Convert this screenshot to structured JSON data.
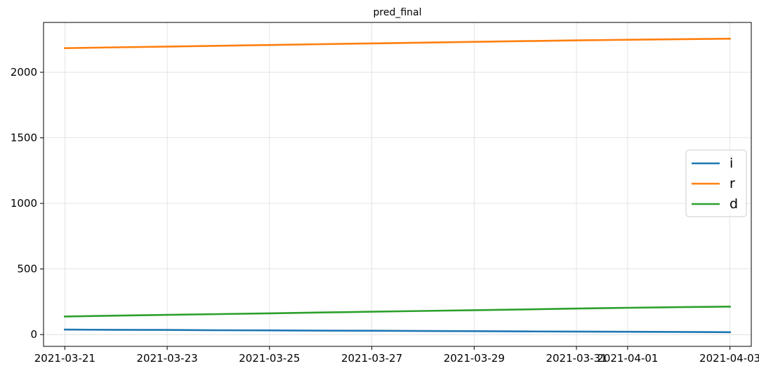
{
  "chart_data": {
    "type": "line",
    "title": "pred_final",
    "xlabel": "",
    "ylabel": "",
    "x": [
      "2021-03-21",
      "2021-03-22",
      "2021-03-23",
      "2021-03-24",
      "2021-03-25",
      "2021-03-26",
      "2021-03-27",
      "2021-03-28",
      "2021-03-29",
      "2021-03-30",
      "2021-03-31",
      "2021-04-01",
      "2021-04-02",
      "2021-04-03"
    ],
    "x_ticks": [
      "2021-03-21",
      "2021-03-23",
      "2021-03-25",
      "2021-03-27",
      "2021-03-29",
      "2021-03-31",
      "2021-04-01",
      "2021-04-03"
    ],
    "xlim": [
      "2021-03-20T14:00",
      "2021-04-03T10:00"
    ],
    "y_ticks": [
      0,
      500,
      1000,
      1500,
      2000
    ],
    "ylim": [
      -90,
      2380
    ],
    "grid": true,
    "legend_position": "center-right",
    "series": [
      {
        "name": "i",
        "color": "#1f77b4",
        "values": [
          38,
          36,
          35,
          33,
          32,
          30,
          29,
          27,
          26,
          24,
          23,
          21,
          20,
          18
        ]
      },
      {
        "name": "r",
        "color": "#ff7f0e",
        "values": [
          2184,
          2190,
          2196,
          2202,
          2208,
          2214,
          2220,
          2226,
          2232,
          2238,
          2243,
          2248,
          2252,
          2256
        ]
      },
      {
        "name": "d",
        "color": "#2ca02c",
        "values": [
          138,
          144,
          150,
          156,
          162,
          168,
          174,
          180,
          186,
          192,
          198,
          204,
          209,
          213
        ]
      }
    ]
  }
}
